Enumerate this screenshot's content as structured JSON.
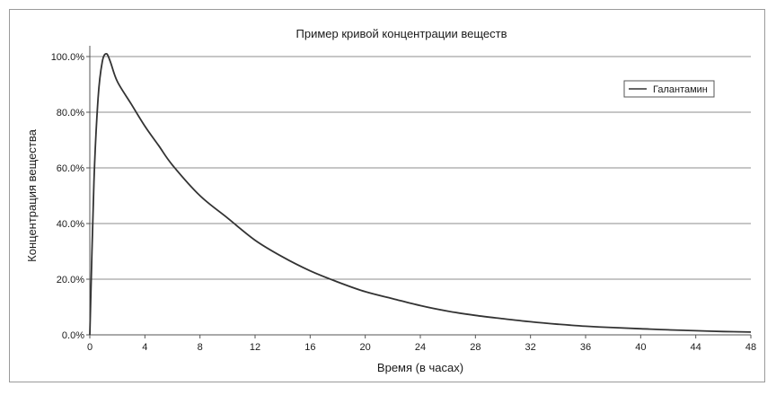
{
  "chart_data": {
    "type": "line",
    "title": "Пример кривой концентрации веществ",
    "xlabel": "Время (в часах)",
    "ylabel": "Концентрация вещества",
    "xlim": [
      0,
      48
    ],
    "ylim": [
      0,
      1
    ],
    "x_ticks": [
      0,
      4,
      8,
      12,
      16,
      20,
      24,
      28,
      32,
      36,
      40,
      44,
      48
    ],
    "x_tick_labels": [
      "0",
      "4",
      "8",
      "12",
      "16",
      "20",
      "24",
      "28",
      "32",
      "36",
      "40",
      "44",
      "48"
    ],
    "y_ticks": [
      0,
      0.2,
      0.4,
      0.6,
      0.8,
      1.0
    ],
    "y_tick_labels": [
      "0.0%",
      "20.0%",
      "40.0%",
      "60.0%",
      "80.0%",
      "100.0%"
    ],
    "grid": "horizontal",
    "legend_position": "top-right",
    "series": [
      {
        "name": "Галантамин",
        "color": "#333333",
        "x": [
          0,
          0.3,
          0.6,
          0.9,
          1.2,
          1.5,
          2,
          3,
          4,
          5,
          6,
          8,
          10,
          12,
          14,
          16,
          18,
          20,
          22,
          24,
          26,
          28,
          30,
          32,
          34,
          36,
          38,
          40,
          42,
          44,
          46,
          48
        ],
        "y": [
          0.0,
          0.55,
          0.85,
          0.98,
          1.01,
          0.98,
          0.91,
          0.83,
          0.75,
          0.68,
          0.61,
          0.5,
          0.42,
          0.34,
          0.28,
          0.23,
          0.19,
          0.155,
          0.13,
          0.105,
          0.085,
          0.07,
          0.058,
          0.047,
          0.038,
          0.031,
          0.026,
          0.022,
          0.018,
          0.015,
          0.012,
          0.01
        ]
      }
    ]
  }
}
